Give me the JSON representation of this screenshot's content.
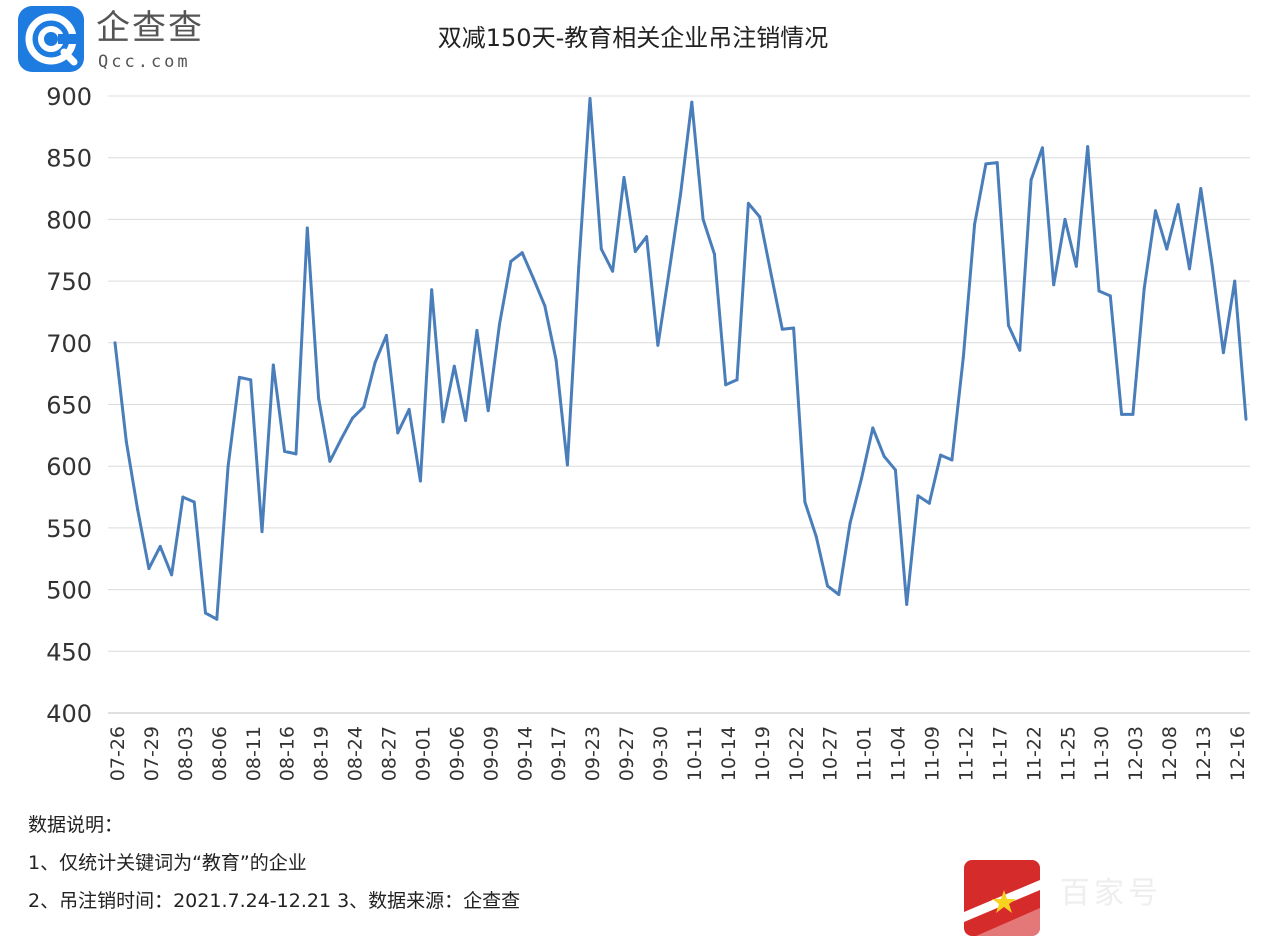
{
  "header": {
    "logo_icon": "qcc-logo-icon",
    "logo_name": "企查查",
    "logo_domain": "Qcc.com"
  },
  "notes": {
    "heading": "数据说明：",
    "line1": "1、仅统计关键词为“教育”的企业",
    "line2": "2、吊注销时间：2021.7.24-12.21   3、数据来源：企查查"
  },
  "corner_mark": {
    "icon": "star-badge-icon",
    "text": "百家号"
  },
  "chart_data": {
    "type": "line",
    "title": "双减150天-教育相关企业吊注销情况",
    "xlabel": "",
    "ylabel": "",
    "ylim": [
      400,
      900
    ],
    "yticks": [
      400,
      450,
      500,
      550,
      600,
      650,
      700,
      750,
      800,
      850,
      900
    ],
    "grid": true,
    "legend": "none",
    "line_color": "#4a7ebb",
    "x_tick_labels": [
      "07-26",
      "07-29",
      "08-03",
      "08-06",
      "08-11",
      "08-16",
      "08-19",
      "08-24",
      "08-27",
      "09-01",
      "09-06",
      "09-09",
      "09-14",
      "09-17",
      "09-23",
      "09-27",
      "09-30",
      "10-11",
      "10-14",
      "10-19",
      "10-22",
      "10-27",
      "11-01",
      "11-04",
      "11-09",
      "11-12",
      "11-17",
      "11-22",
      "11-25",
      "11-30",
      "12-03",
      "12-08",
      "12-13",
      "12-16"
    ],
    "values": [
      700,
      620,
      565,
      517,
      535,
      512,
      575,
      571,
      481,
      476,
      600,
      672,
      670,
      547,
      682,
      612,
      610,
      793,
      655,
      604,
      622,
      639,
      648,
      684,
      706,
      627,
      646,
      588,
      743,
      636,
      681,
      637,
      710,
      645,
      715,
      766,
      773,
      752,
      730,
      686,
      601,
      761,
      898,
      776,
      758,
      834,
      774,
      786,
      698,
      758,
      820,
      895,
      800,
      772,
      666,
      670,
      813,
      802,
      756,
      711,
      712,
      571,
      543,
      503,
      496,
      554,
      590,
      631,
      608,
      597,
      488,
      576,
      570,
      609,
      605,
      688,
      796,
      845,
      846,
      714,
      694,
      832,
      858,
      747,
      800,
      762,
      859,
      742,
      738,
      642,
      642,
      744,
      807,
      776,
      812,
      760,
      825,
      763,
      692,
      750,
      638
    ]
  }
}
